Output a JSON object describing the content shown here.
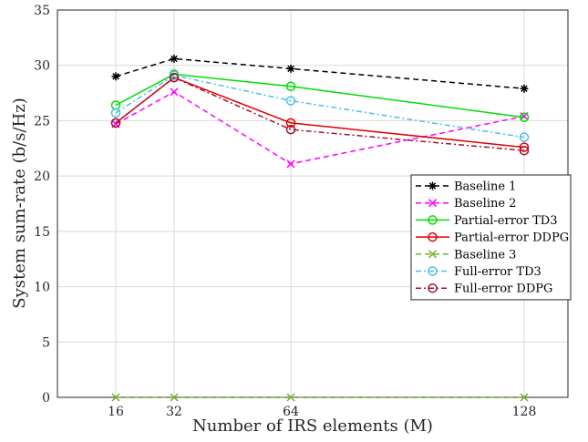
{
  "chart_data": {
    "type": "line",
    "title": "",
    "xlabel": "Number of IRS elements (M)",
    "ylabel": "System sum-rate (b/s/Hz)",
    "x": [
      16,
      32,
      64,
      128
    ],
    "xlim": [
      0,
      140
    ],
    "ylim": [
      0,
      35
    ],
    "xticks": [
      16,
      32,
      64,
      128
    ],
    "yticks": [
      0,
      5,
      10,
      15,
      20,
      25,
      30,
      35
    ],
    "grid": true,
    "legend_position": "right",
    "series": [
      {
        "name": "Baseline 1",
        "values": [
          29.0,
          30.6,
          29.7,
          27.9
        ],
        "color": "#000000",
        "dash": "6,4",
        "marker": "star"
      },
      {
        "name": "Baseline 2",
        "values": [
          24.7,
          27.6,
          21.1,
          25.4
        ],
        "color": "#ff00ff",
        "dash": "6,4",
        "marker": "x"
      },
      {
        "name": "Partial-error TD3",
        "values": [
          26.4,
          29.2,
          28.1,
          25.3
        ],
        "color": "#00dd00",
        "dash": "",
        "marker": "circle"
      },
      {
        "name": "Partial-error DDPG",
        "values": [
          24.8,
          28.9,
          24.8,
          22.6
        ],
        "color": "#e00000",
        "dash": "",
        "marker": "circle"
      },
      {
        "name": "Baseline 3",
        "values": [
          0,
          0,
          0,
          0
        ],
        "color": "#77ac30",
        "dash": "6,4",
        "marker": "x"
      },
      {
        "name": "Full-error TD3",
        "values": [
          25.7,
          29.1,
          26.8,
          23.5
        ],
        "color": "#4dbeee",
        "dash": "6,3,2,3",
        "marker": "circle"
      },
      {
        "name": "Full-error DDPG",
        "values": [
          24.8,
          28.9,
          24.2,
          22.3
        ],
        "color": "#a2142f",
        "dash": "6,3,2,3",
        "marker": "circle"
      }
    ]
  }
}
